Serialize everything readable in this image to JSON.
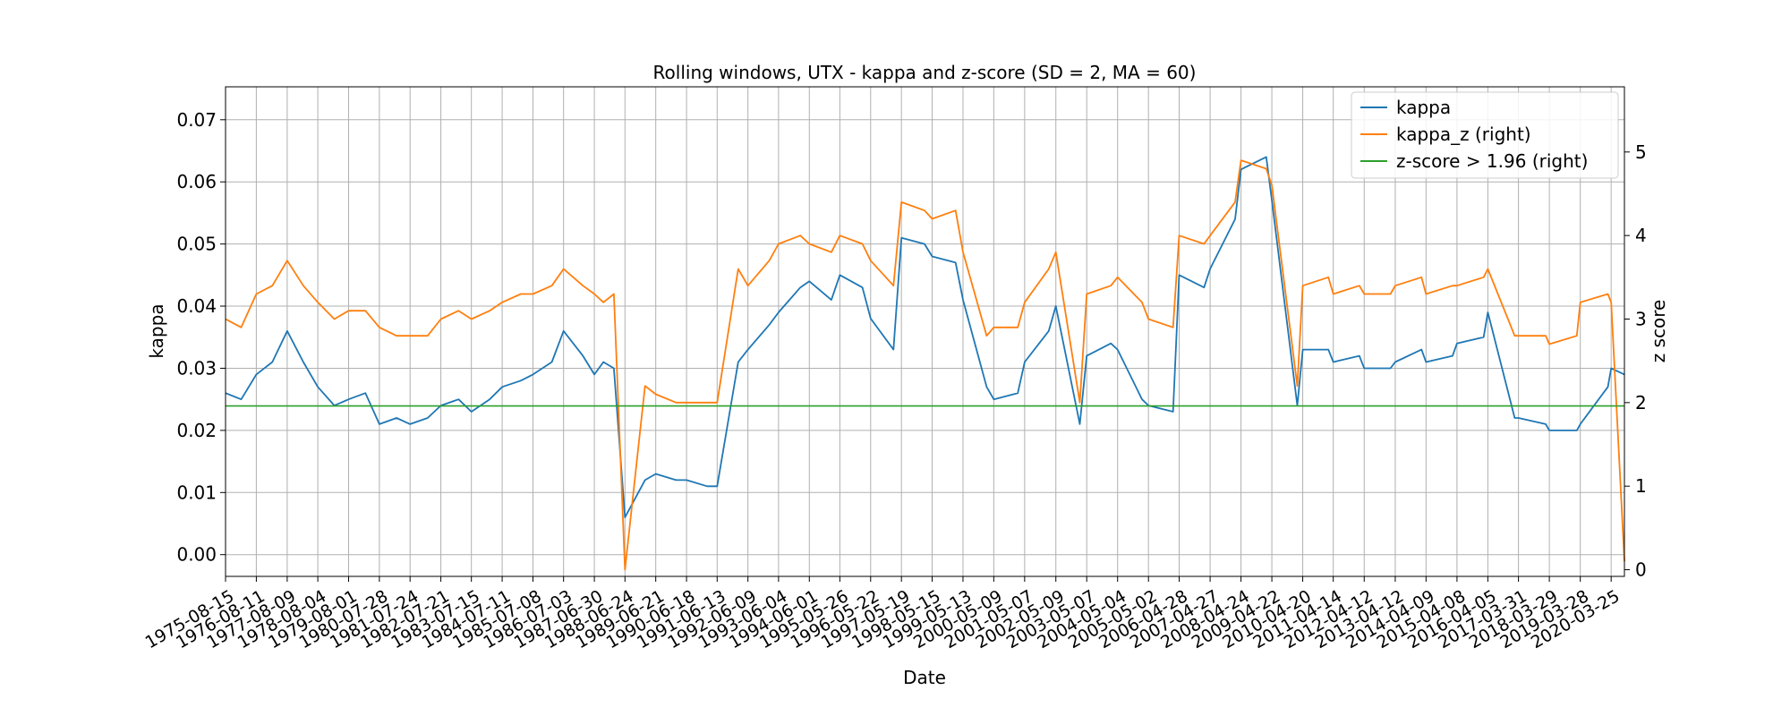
{
  "chart_data": {
    "type": "line",
    "title": "Rolling windows, UTX - kappa and z-score (SD = 2, MA = 60)",
    "xlabel": "Date",
    "ylabel": "kappa",
    "y2label": "z score",
    "ylim": [
      -0.0035,
      0.0753
    ],
    "y2lim": [
      -0.08,
      5.78
    ],
    "yticks": [
      0.0,
      0.01,
      0.02,
      0.03,
      0.04,
      0.05,
      0.06,
      0.07
    ],
    "ytick_labels": [
      "0.00",
      "0.01",
      "0.02",
      "0.03",
      "0.04",
      "0.05",
      "0.06",
      "0.07"
    ],
    "y2ticks": [
      0,
      1,
      2,
      3,
      4,
      5
    ],
    "y2tick_labels": [
      "0",
      "1",
      "2",
      "3",
      "4",
      "5"
    ],
    "xlim": [
      "1975-08-15",
      "2020-08-28"
    ],
    "xtick_labels": [
      "1975-08-15",
      "1976-08-11",
      "1977-08-09",
      "1978-08-04",
      "1979-08-01",
      "1980-07-28",
      "1981-07-24",
      "1982-07-21",
      "1983-07-15",
      "1984-07-11",
      "1985-07-08",
      "1986-07-03",
      "1987-06-30",
      "1988-06-24",
      "1989-06-21",
      "1990-06-18",
      "1991-06-13",
      "1992-06-09",
      "1993-06-04",
      "1994-06-01",
      "1995-05-26",
      "1996-05-22",
      "1997-05-19",
      "1998-05-15",
      "1999-05-13",
      "2000-05-09",
      "2001-05-07",
      "2002-05-09",
      "2003-05-07",
      "2004-05-04",
      "2005-05-02",
      "2006-04-28",
      "2007-04-27",
      "2008-04-24",
      "2009-04-22",
      "2010-04-20",
      "2011-04-14",
      "2012-04-12",
      "2013-04-12",
      "2014-04-09",
      "2015-04-08",
      "2016-04-05",
      "2017-03-31",
      "2018-03-29",
      "2019-03-28",
      "2020-03-25"
    ],
    "grid": true,
    "legend_position": "top-right",
    "threshold": 1.96,
    "series": [
      {
        "name": "kappa",
        "axis": "left",
        "color": "#1f77b4",
        "x": [
          "1975-08-15",
          "1976-02-15",
          "1976-08-11",
          "1977-02-15",
          "1977-08-09",
          "1978-02-15",
          "1978-08-04",
          "1979-02-15",
          "1979-08-01",
          "1980-02-15",
          "1980-07-28",
          "1981-02-15",
          "1981-07-24",
          "1982-02-15",
          "1982-07-21",
          "1983-02-15",
          "1983-07-15",
          "1984-02-15",
          "1984-07-11",
          "1985-02-15",
          "1985-07-08",
          "1986-02-15",
          "1986-07-03",
          "1987-02-15",
          "1987-06-30",
          "1987-10-15",
          "1988-02-15",
          "1988-06-24",
          "1989-02-15",
          "1989-06-21",
          "1990-02-15",
          "1990-06-18",
          "1991-02-15",
          "1991-06-13",
          "1992-02-15",
          "1992-06-09",
          "1993-02-15",
          "1993-06-04",
          "1994-02-15",
          "1994-06-01",
          "1995-02-15",
          "1995-05-26",
          "1996-02-15",
          "1996-05-22",
          "1997-02-15",
          "1997-05-19",
          "1998-02-15",
          "1998-05-15",
          "1999-02-15",
          "1999-05-13",
          "2000-02-15",
          "2000-05-09",
          "2001-02-15",
          "2001-05-07",
          "2002-02-15",
          "2002-05-09",
          "2003-02-15",
          "2003-05-07",
          "2004-02-15",
          "2004-05-04",
          "2005-02-15",
          "2005-05-02",
          "2006-02-15",
          "2006-04-28",
          "2007-02-15",
          "2007-04-27",
          "2008-02-15",
          "2008-04-24",
          "2009-02-15",
          "2009-04-22",
          "2010-02-15",
          "2010-04-20",
          "2011-02-15",
          "2011-04-14",
          "2012-02-15",
          "2012-04-12",
          "2013-02-15",
          "2013-04-12",
          "2014-02-15",
          "2014-04-09",
          "2015-02-15",
          "2015-04-08",
          "2016-02-15",
          "2016-04-05",
          "2017-02-15",
          "2017-03-31",
          "2018-02-15",
          "2018-03-29",
          "2019-02-15",
          "2019-03-28",
          "2020-02-15",
          "2020-03-25",
          "2020-08-28"
        ],
        "values": [
          0.026,
          0.025,
          0.029,
          0.031,
          0.036,
          0.031,
          0.027,
          0.024,
          0.025,
          0.026,
          0.021,
          0.022,
          0.021,
          0.022,
          0.024,
          0.025,
          0.023,
          0.025,
          0.027,
          0.028,
          0.029,
          0.031,
          0.036,
          0.032,
          0.029,
          0.031,
          0.03,
          0.006,
          0.012,
          0.013,
          0.012,
          0.012,
          0.011,
          0.011,
          0.031,
          0.033,
          0.037,
          0.039,
          0.043,
          0.044,
          0.041,
          0.045,
          0.043,
          0.038,
          0.033,
          0.051,
          0.05,
          0.048,
          0.047,
          0.041,
          0.027,
          0.025,
          0.026,
          0.031,
          0.036,
          0.04,
          0.021,
          0.032,
          0.034,
          0.033,
          0.025,
          0.024,
          0.023,
          0.045,
          0.043,
          0.046,
          0.054,
          0.062,
          0.064,
          0.057,
          0.024,
          0.033,
          0.033,
          0.031,
          0.032,
          0.03,
          0.03,
          0.031,
          0.033,
          0.031,
          0.032,
          0.034,
          0.035,
          0.039,
          0.022,
          0.022,
          0.021,
          0.02,
          0.02,
          0.021,
          0.027,
          0.03,
          0.029
        ]
      },
      {
        "name": "kappa_z (right)",
        "axis": "right",
        "color": "#ff7f0e",
        "x": [
          "1975-08-15",
          "1976-02-15",
          "1976-08-11",
          "1977-02-15",
          "1977-08-09",
          "1978-02-15",
          "1978-08-04",
          "1979-02-15",
          "1979-08-01",
          "1980-02-15",
          "1980-07-28",
          "1981-02-15",
          "1981-07-24",
          "1982-02-15",
          "1982-07-21",
          "1983-02-15",
          "1983-07-15",
          "1984-02-15",
          "1984-07-11",
          "1985-02-15",
          "1985-07-08",
          "1986-02-15",
          "1986-07-03",
          "1987-02-15",
          "1987-06-30",
          "1987-10-15",
          "1988-02-15",
          "1988-06-24",
          "1989-02-15",
          "1989-06-21",
          "1990-02-15",
          "1990-06-18",
          "1991-02-15",
          "1991-06-13",
          "1992-02-15",
          "1992-06-09",
          "1993-02-15",
          "1993-06-04",
          "1994-02-15",
          "1994-06-01",
          "1995-02-15",
          "1995-05-26",
          "1996-02-15",
          "1996-05-22",
          "1997-02-15",
          "1997-05-19",
          "1998-02-15",
          "1998-05-15",
          "1999-02-15",
          "1999-05-13",
          "2000-02-15",
          "2000-05-09",
          "2001-02-15",
          "2001-05-07",
          "2002-02-15",
          "2002-05-09",
          "2003-02-15",
          "2003-05-07",
          "2004-02-15",
          "2004-05-04",
          "2005-02-15",
          "2005-05-02",
          "2006-02-15",
          "2006-04-28",
          "2007-02-15",
          "2007-04-27",
          "2008-02-15",
          "2008-04-24",
          "2009-02-15",
          "2009-04-22",
          "2010-02-15",
          "2010-04-20",
          "2011-02-15",
          "2011-04-14",
          "2012-02-15",
          "2012-04-12",
          "2013-02-15",
          "2013-04-12",
          "2014-02-15",
          "2014-04-09",
          "2015-02-15",
          "2015-04-08",
          "2016-02-15",
          "2016-04-05",
          "2017-02-15",
          "2017-03-31",
          "2018-02-15",
          "2018-03-29",
          "2019-02-15",
          "2019-03-28",
          "2020-02-15",
          "2020-03-25",
          "2020-08-28"
        ],
        "values": [
          3.0,
          2.9,
          3.3,
          3.4,
          3.7,
          3.4,
          3.2,
          3.0,
          3.1,
          3.1,
          2.9,
          2.8,
          2.8,
          2.8,
          3.0,
          3.1,
          3.0,
          3.1,
          3.2,
          3.3,
          3.3,
          3.4,
          3.6,
          3.4,
          3.3,
          3.2,
          3.3,
          0.0,
          2.2,
          2.1,
          2.0,
          2.0,
          2.0,
          2.0,
          3.6,
          3.4,
          3.7,
          3.9,
          4.0,
          3.9,
          3.8,
          4.0,
          3.9,
          3.7,
          3.4,
          4.4,
          4.3,
          4.2,
          4.3,
          3.8,
          2.8,
          2.9,
          2.9,
          3.2,
          3.6,
          3.8,
          2.0,
          3.3,
          3.4,
          3.5,
          3.2,
          3.0,
          2.9,
          4.0,
          3.9,
          4.0,
          4.4,
          4.9,
          4.8,
          4.6,
          2.2,
          3.4,
          3.5,
          3.3,
          3.4,
          3.3,
          3.3,
          3.4,
          3.5,
          3.3,
          3.4,
          3.4,
          3.5,
          3.6,
          2.8,
          2.8,
          2.8,
          2.7,
          2.8,
          3.2,
          3.3,
          3.2,
          0.1
        ]
      },
      {
        "name": "z-score > 1.96 (right)",
        "axis": "right",
        "color": "#2ca02c",
        "x": [
          "1975-08-15",
          "2020-08-28"
        ],
        "values": [
          1.96,
          1.96
        ]
      }
    ]
  }
}
